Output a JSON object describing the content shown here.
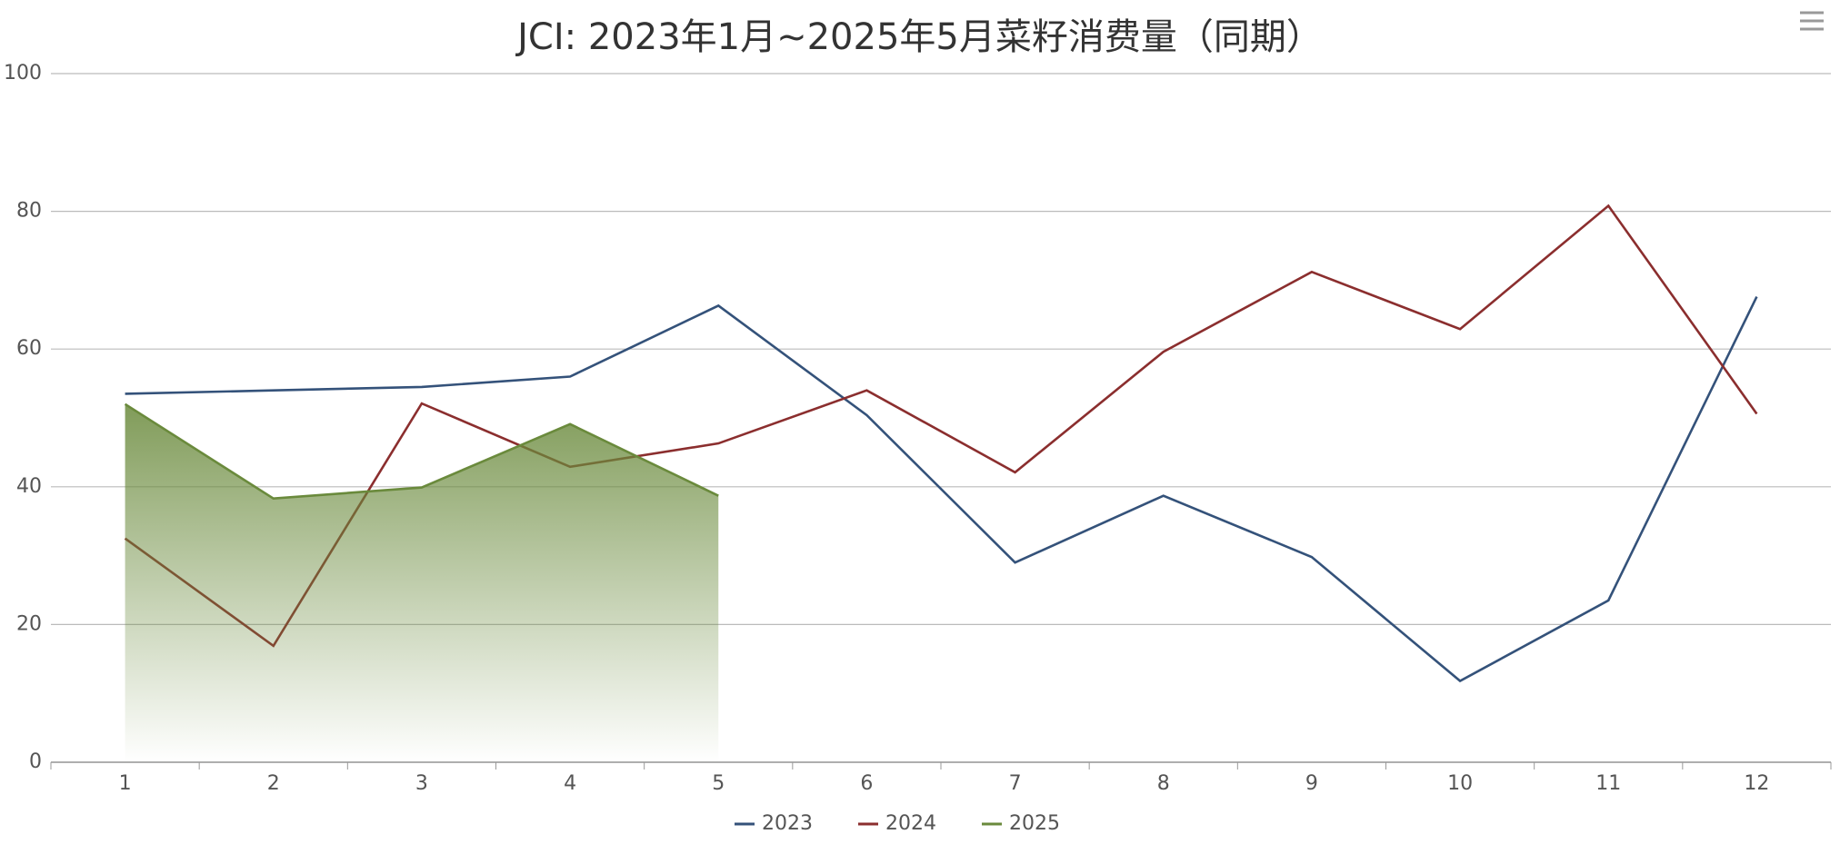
{
  "chart_data": {
    "type": "line",
    "title": "JCI: 2023年1月~2025年5月菜籽消费量（同期）",
    "categories": [
      "1",
      "2",
      "3",
      "4",
      "5",
      "6",
      "7",
      "8",
      "9",
      "10",
      "11",
      "12"
    ],
    "series": [
      {
        "name": "2023",
        "color": "#34527a",
        "values": [
          53.5,
          54,
          54.5,
          56,
          66.3,
          50.4,
          29,
          38.7,
          29.8,
          11.8,
          23.5,
          67.6
        ]
      },
      {
        "name": "2024",
        "color": "#8b2e2e",
        "values": [
          32.5,
          16.9,
          52.1,
          42.9,
          46.3,
          54,
          42.1,
          59.6,
          71.2,
          62.9,
          80.8,
          50.6
        ]
      },
      {
        "name": "2025",
        "color": "#6a8a3c",
        "area": true,
        "values": [
          52,
          38.3,
          39.9,
          49.1,
          38.7,
          null,
          null,
          null,
          null,
          null,
          null,
          null
        ]
      }
    ],
    "ylim": [
      0,
      100
    ],
    "yticks": [
      0,
      20,
      40,
      60,
      80,
      100
    ],
    "grid": true,
    "legend": "bottom"
  }
}
